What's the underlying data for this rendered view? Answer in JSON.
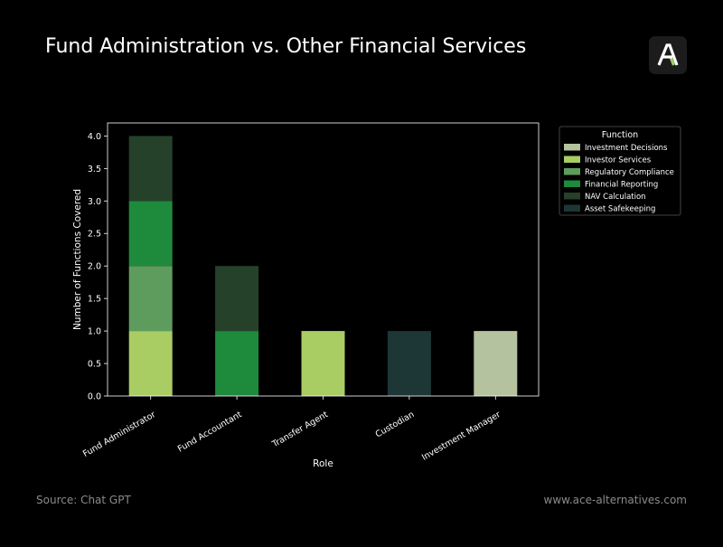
{
  "header": {
    "title": "Fund Administration vs. Other Financial Services",
    "logo_icon": "ace-alternatives-logo-icon"
  },
  "footer": {
    "source": "Source: Chat GPT",
    "url": "www.ace-alternatives.com"
  },
  "colors": {
    "background": "#000000",
    "axis": "#ffffff",
    "logo_green": "#9bd46b"
  },
  "chart_data": {
    "type": "bar",
    "stacked": true,
    "title": "",
    "xlabel": "Role",
    "ylabel": "Number of Functions Covered",
    "ylim": [
      0,
      4.2
    ],
    "yticks": [
      "0.0",
      "0.5",
      "1.0",
      "1.5",
      "2.0",
      "2.5",
      "3.0",
      "3.5",
      "4.0"
    ],
    "categories": [
      "Fund Administrator",
      "Fund Accountant",
      "Transfer Agent",
      "Custodian",
      "Investment Manager"
    ],
    "series": [
      {
        "name": "Investment Decisions",
        "color": "#b4c2a0",
        "values": [
          0,
          0,
          0,
          0,
          1
        ]
      },
      {
        "name": "Investor Services",
        "color": "#a9cc63",
        "values": [
          1,
          0,
          1,
          0,
          0
        ]
      },
      {
        "name": "Regulatory Compliance",
        "color": "#5e9c5d",
        "values": [
          1,
          0,
          0,
          0,
          0
        ]
      },
      {
        "name": "Financial Reporting",
        "color": "#1e8a3c",
        "values": [
          1,
          1,
          0,
          0,
          0
        ]
      },
      {
        "name": "NAV Calculation",
        "color": "#25412a",
        "values": [
          1,
          1,
          0,
          0,
          0
        ]
      },
      {
        "name": "Asset Safekeeping",
        "color": "#1d3636",
        "values": [
          0,
          0,
          0,
          1,
          0
        ]
      }
    ],
    "stack_order": [
      "Investor Services",
      "Regulatory Compliance",
      "Financial Reporting",
      "NAV Calculation",
      "Asset Safekeeping",
      "Investment Decisions"
    ],
    "legend": {
      "title": "Function",
      "placement": "outside-top-right"
    },
    "grid": false
  }
}
